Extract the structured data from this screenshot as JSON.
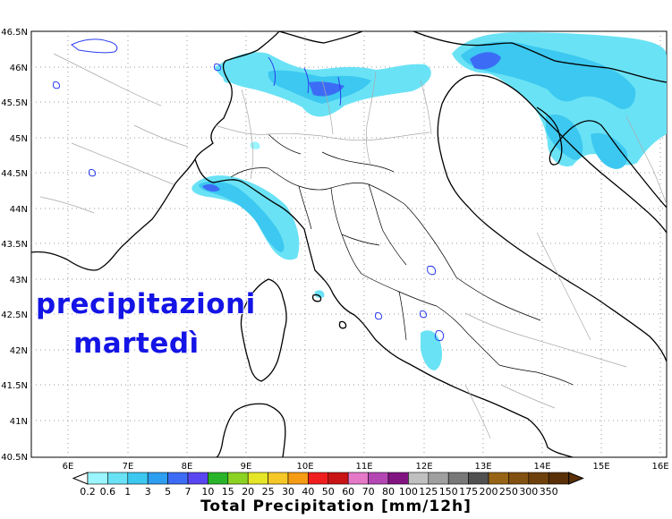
{
  "map": {
    "lat_ticks": [
      "46.5N",
      "46N",
      "45.5N",
      "45N",
      "44.5N",
      "44N",
      "43.5N",
      "43N",
      "42.5N",
      "42N",
      "41.5N",
      "41N",
      "40.5N"
    ],
    "lon_ticks": [
      "6E",
      "7E",
      "8E",
      "9E",
      "10E",
      "11E",
      "12E",
      "13E",
      "14E",
      "15E",
      "16E"
    ]
  },
  "overlay": {
    "title": "precipitazioni",
    "day": "martedì"
  },
  "colorbar": {
    "labels": [
      "0.2",
      "0.6",
      "1",
      "3",
      "5",
      "7",
      "10",
      "15",
      "20",
      "25",
      "30",
      "40",
      "50",
      "60",
      "70",
      "80",
      "100",
      "125",
      "150",
      "175",
      "200",
      "250",
      "300",
      "350"
    ],
    "colors": [
      "#9af5ff",
      "#6ae2f5",
      "#3cc8f0",
      "#2d9ef0",
      "#3c6cf5",
      "#5a46f0",
      "#28b428",
      "#8cd223",
      "#e6e628",
      "#f5c828",
      "#f59b14",
      "#f01e1e",
      "#c81414",
      "#e678c8",
      "#b446b4",
      "#821482",
      "#c0c0c0",
      "#a0a0a0",
      "#787878",
      "#505050",
      "#966414",
      "#825010",
      "#6e400c",
      "#5a3008"
    ],
    "title": "Total Precipitation [mm/12h]"
  }
}
